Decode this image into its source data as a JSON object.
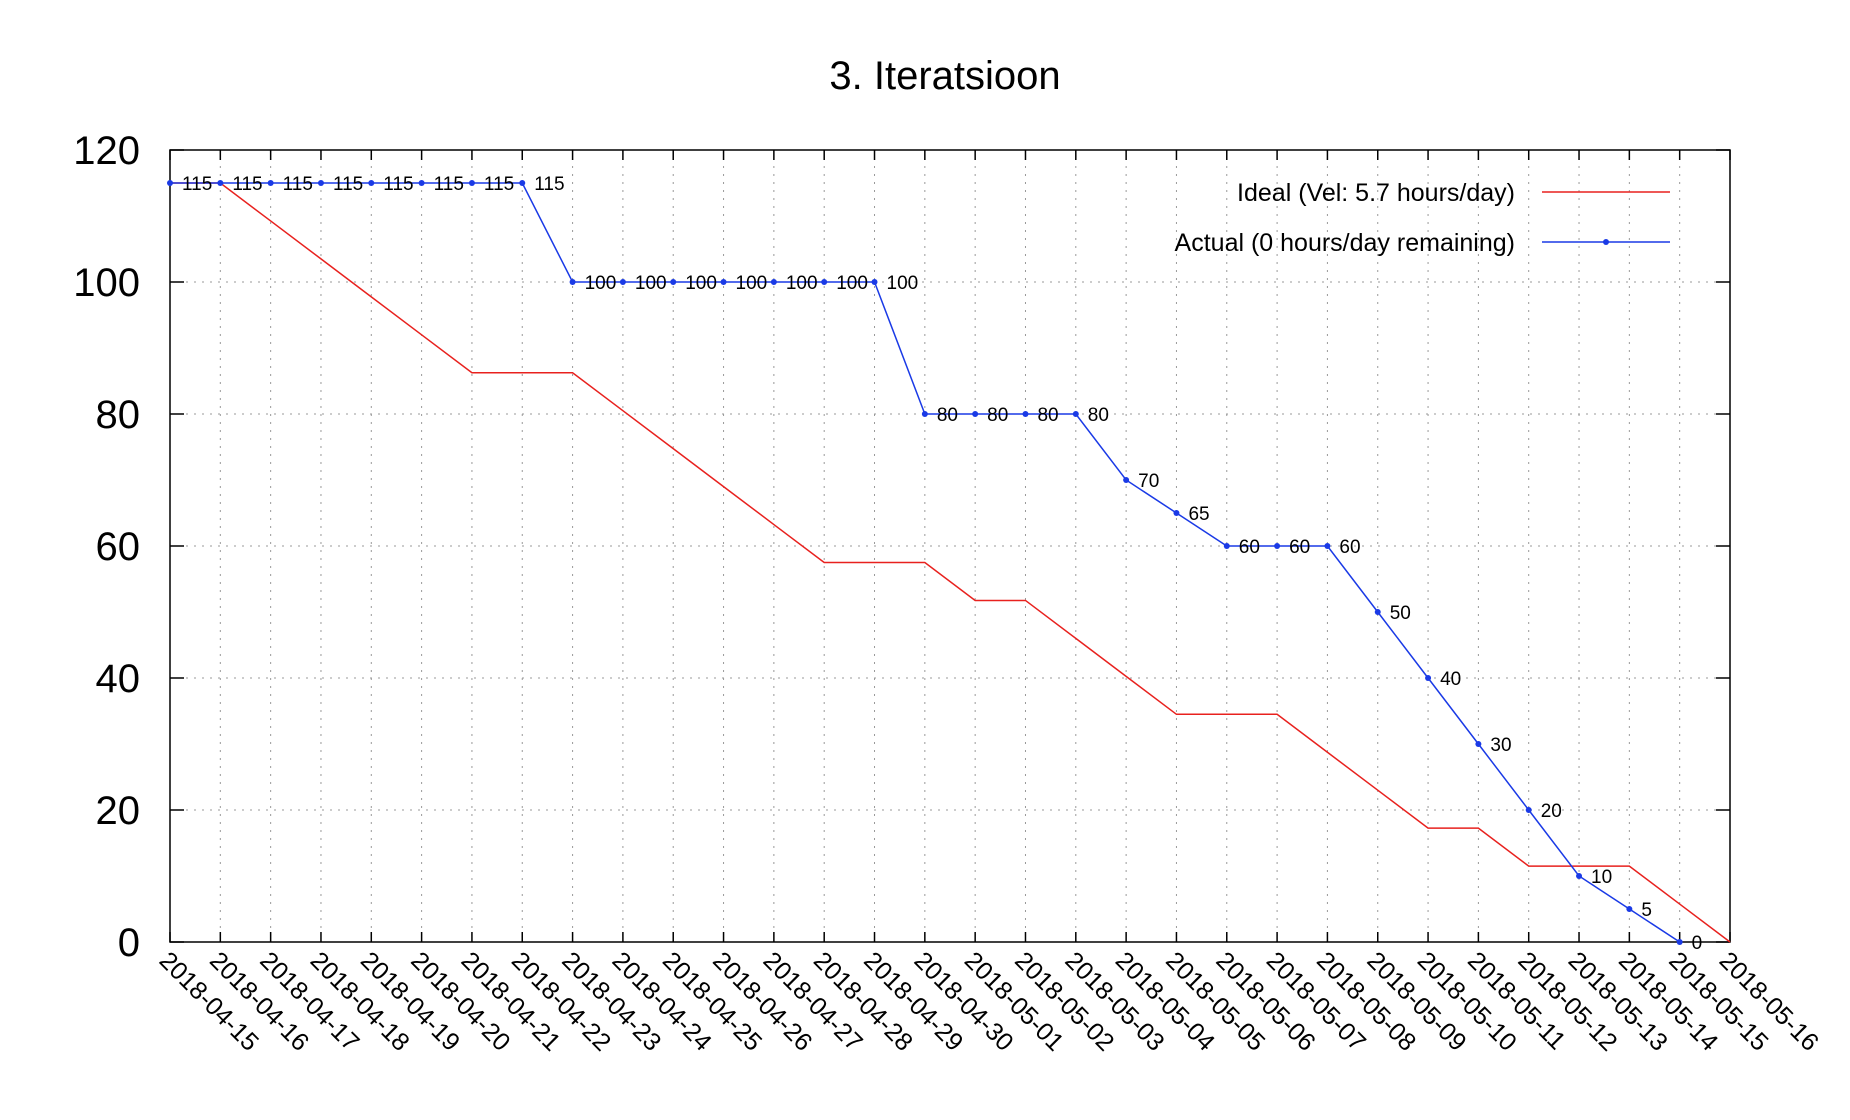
{
  "chart_data": {
    "type": "line",
    "title": "3. Iteratsioon",
    "xlabel": "",
    "ylabel": "",
    "ylim": [
      0,
      120
    ],
    "yticks": [
      0,
      20,
      40,
      60,
      80,
      100,
      120
    ],
    "grid": true,
    "legend_position": "top-right",
    "categories": [
      "2018-04-15",
      "2018-04-16",
      "2018-04-17",
      "2018-04-18",
      "2018-04-19",
      "2018-04-20",
      "2018-04-21",
      "2018-04-22",
      "2018-04-23",
      "2018-04-24",
      "2018-04-25",
      "2018-04-26",
      "2018-04-27",
      "2018-04-28",
      "2018-04-29",
      "2018-04-30",
      "2018-05-01",
      "2018-05-02",
      "2018-05-03",
      "2018-05-04",
      "2018-05-05",
      "2018-05-06",
      "2018-05-07",
      "2018-05-08",
      "2018-05-09",
      "2018-05-10",
      "2018-05-11",
      "2018-05-12",
      "2018-05-13",
      "2018-05-14",
      "2018-05-15",
      "2018-05-16"
    ],
    "series": [
      {
        "name": "Ideal (Vel: 5.7 hours/day)",
        "color": "#e8211e",
        "markers": false,
        "values": [
          115,
          115,
          109.25,
          103.5,
          97.75,
          92,
          86.25,
          86.25,
          86.25,
          80.5,
          74.75,
          69,
          63.25,
          57.5,
          57.5,
          57.5,
          51.75,
          51.75,
          46,
          40.25,
          34.5,
          34.5,
          34.5,
          28.75,
          23,
          17.25,
          17.25,
          11.5,
          11.5,
          11.5,
          5.75,
          0
        ]
      },
      {
        "name": "Actual (0 hours/day remaining)",
        "color": "#1a3ae6",
        "markers": true,
        "values": [
          115,
          115,
          115,
          115,
          115,
          115,
          115,
          115,
          100,
          100,
          100,
          100,
          100,
          100,
          100,
          80,
          80,
          80,
          80,
          70,
          65,
          60,
          60,
          60,
          50,
          40,
          30,
          20,
          10,
          5,
          0,
          null
        ],
        "labels": [
          "115",
          "115",
          "115",
          "115",
          "115",
          "115",
          "115",
          "115",
          "100",
          "100",
          "100",
          "100",
          "100",
          "100",
          "100",
          "80",
          "80",
          "80",
          "80",
          "70",
          "65",
          "60",
          "60",
          "60",
          "50",
          "40",
          "30",
          "20",
          "10",
          "5",
          "0",
          null
        ]
      }
    ]
  }
}
